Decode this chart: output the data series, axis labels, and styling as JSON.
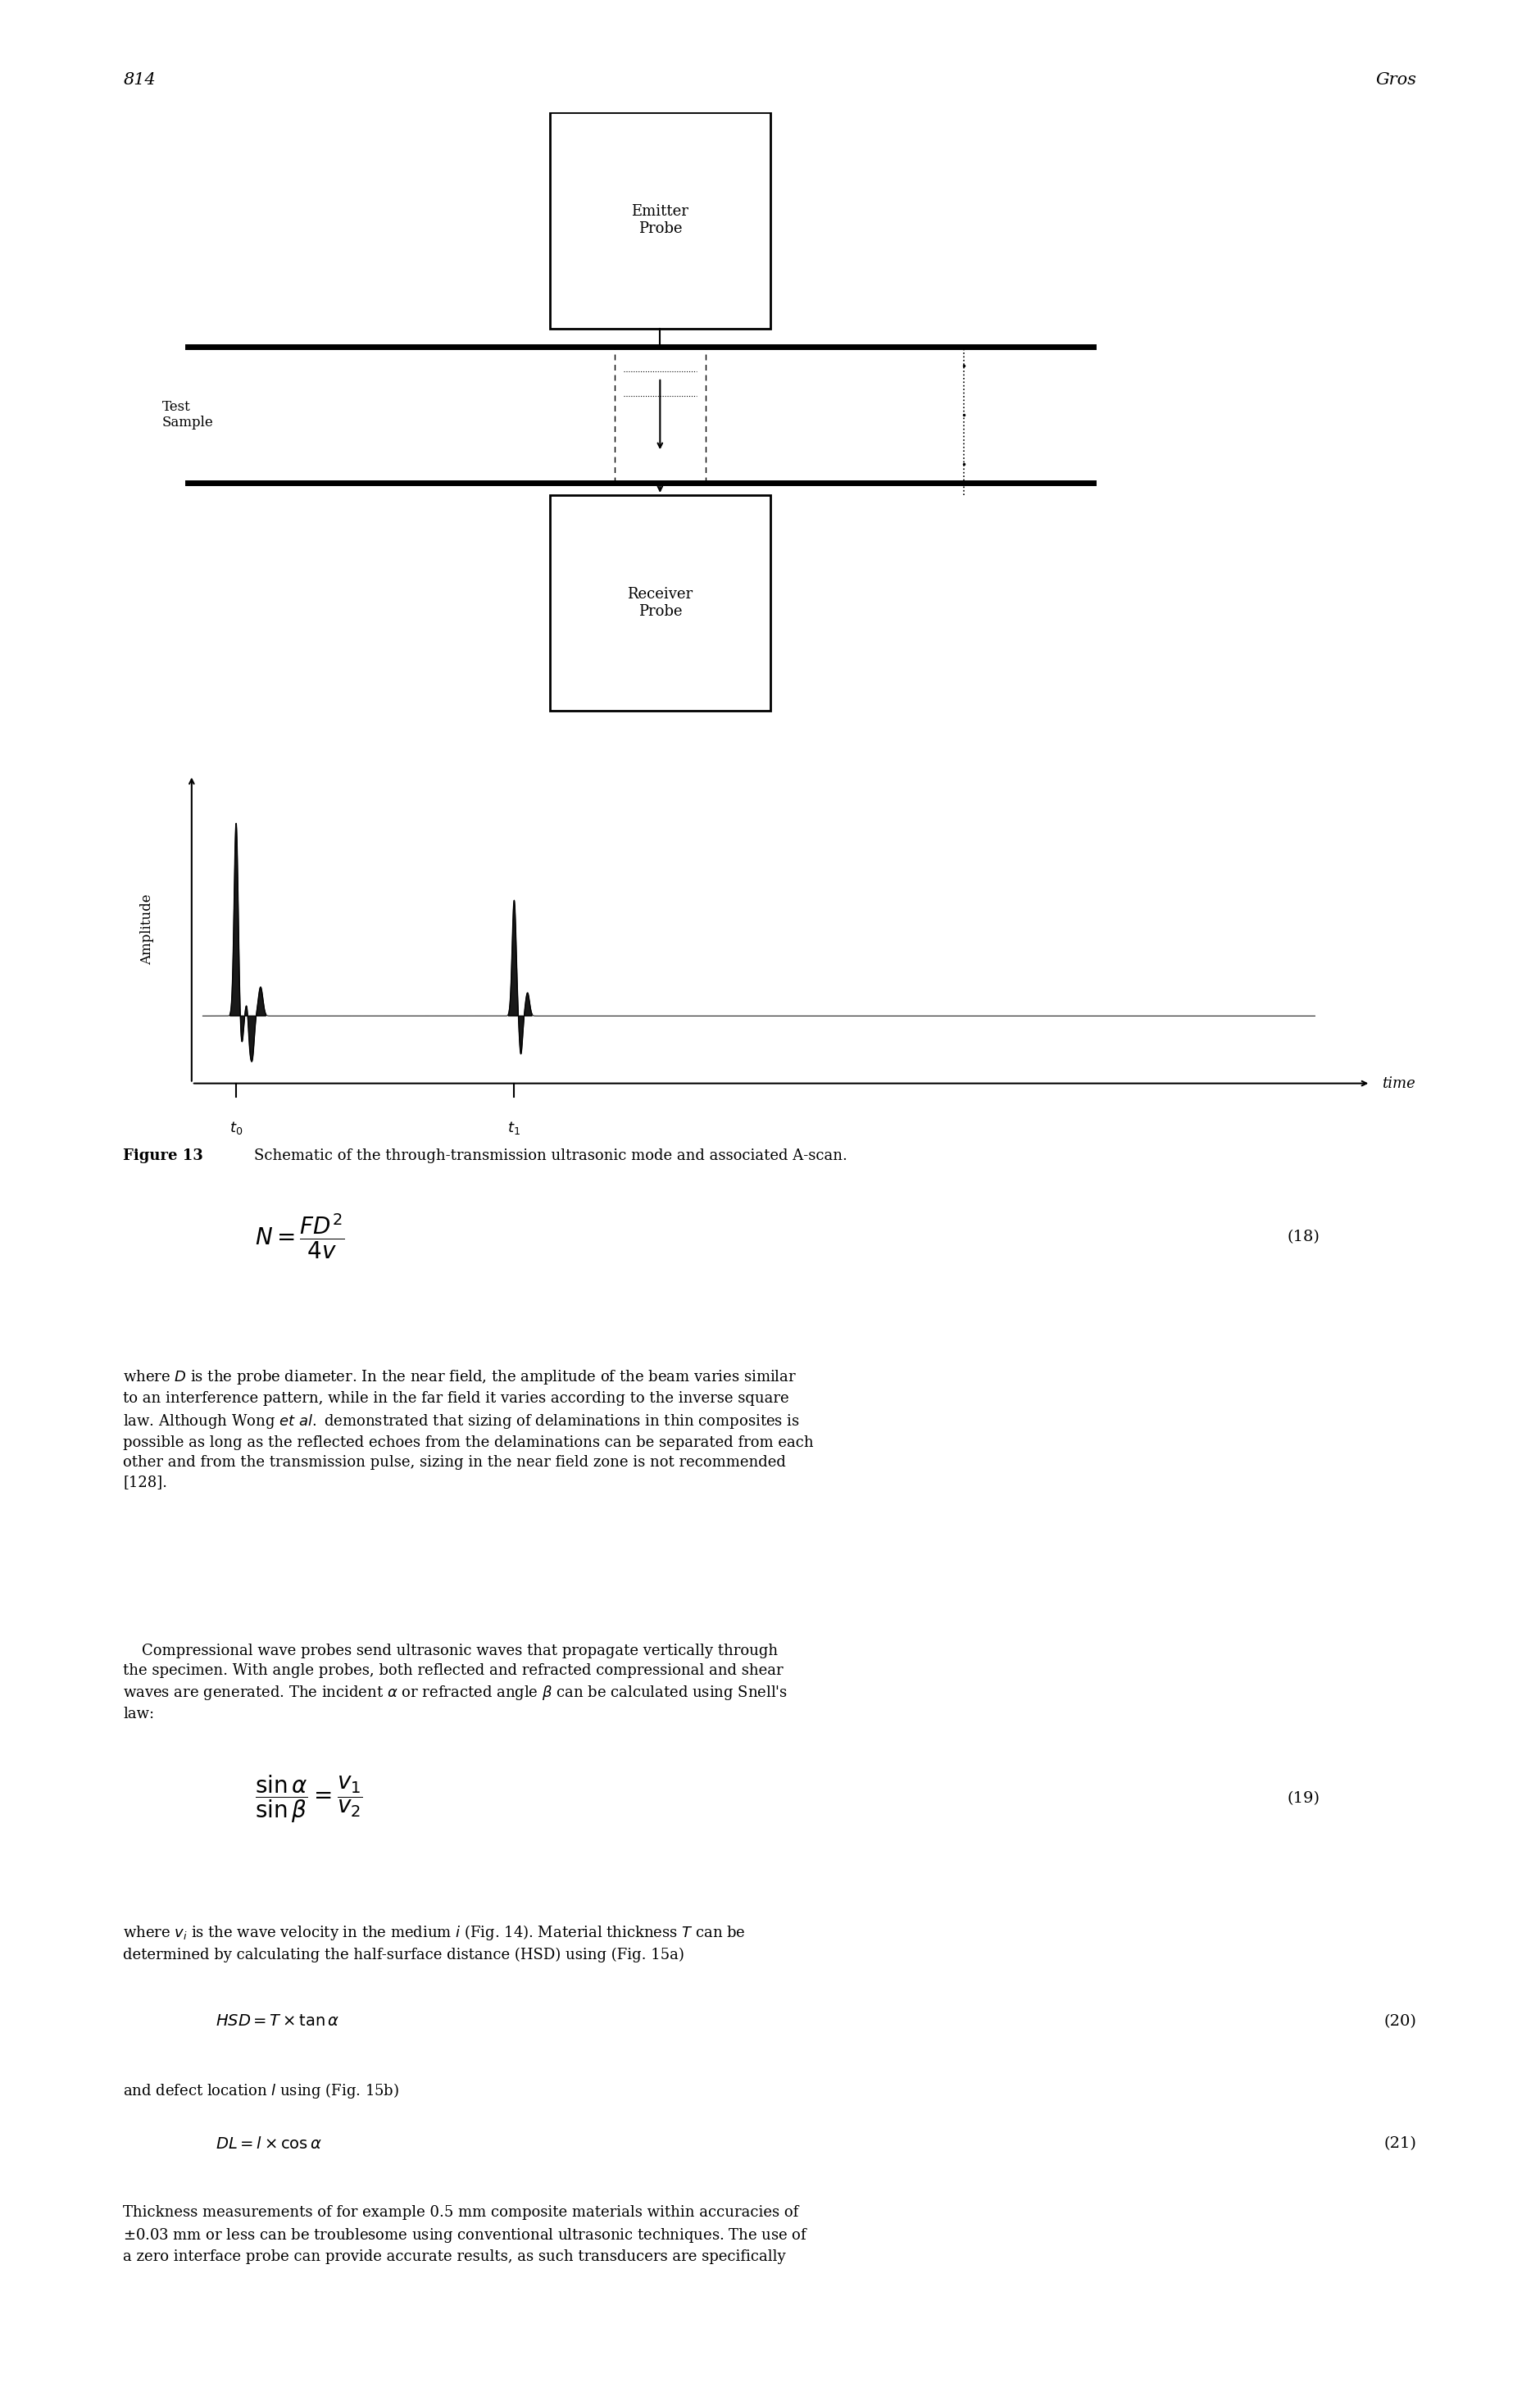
{
  "page_number": "814",
  "author": "Gros",
  "fig_caption_bold": "Figure 13",
  "fig_caption_rest": "   Schematic of the through-transmission ultrasonic mode and associated A-scan.",
  "background_color": "#ffffff",
  "schematic": {
    "emitter_label": "Emitter\nProbe",
    "receiver_label": "Receiver\nProbe",
    "test_sample_label": "Test\nSample"
  },
  "ascan": {
    "xlabel": "time",
    "ylabel": "Amplitude",
    "t0_label": "t₀",
    "t1_label": "t₁"
  },
  "eq18": "N = \\dfrac{FD^2}{4v}",
  "eq18_num": "(18)",
  "para1": "where $D$ is the probe diameter. In the near field, the amplitude of the beam varies similar\nto an interference pattern, while in the far field it varies according to the inverse square\nlaw. Although Wong $et$ $al.$ demonstrated that sizing of delaminations in thin composites is\npossible as long as the reflected echoes from the delaminations can be separated from each\nother and from the transmission pulse, sizing in the near field zone is not recommended\n[128].",
  "para2_indent": "    Compressional wave probes send ultrasonic waves that propagate vertically through\nthe specimen. With angle probes, both reflected and refracted compressional and shear\nwaves are generated. The incident $\\alpha$ or refracted angle $\\beta$ can be calculated using Snell's\nlaw:",
  "eq19_num": "(19)",
  "para3": "where $v_i$ is the wave velocity in the medium $i$ (Fig. 14). Material thickness $T$ can be\ndetermined by calculating the half-surface distance (HSD) using (Fig. 15a)",
  "eq20_text": "$HSD = T \\times \\tan\\alpha$",
  "eq20_num": "(20)",
  "para4": "and defect location $l$ using (Fig. 15b)",
  "eq21_text": "$DL = l \\times \\cos\\alpha$",
  "eq21_num": "(21)",
  "para5": "Thickness measurements of for example 0.5 mm composite materials within accuracies of\n$\\pm$0.03 mm or less can be troublesome using conventional ultrasonic techniques. The use of\na zero interface probe can provide accurate results, as such transducers are specifically"
}
